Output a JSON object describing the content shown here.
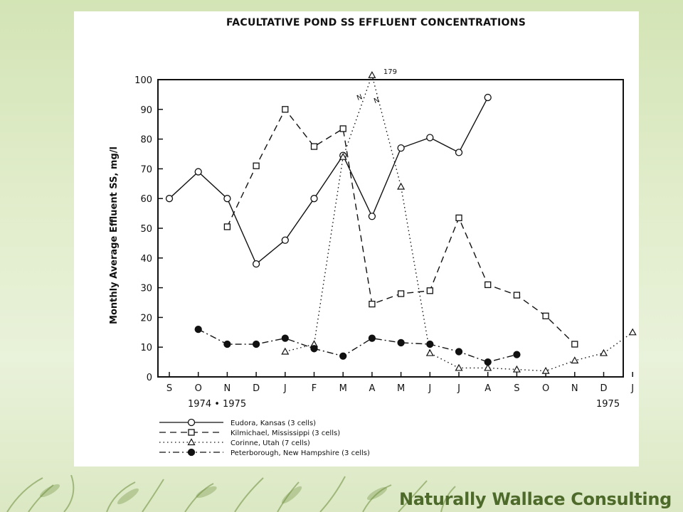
{
  "brand": {
    "name": "Naturally Wallace Consulting"
  },
  "colors": {
    "background": "#dbe8c3",
    "brand_text": "#4d6a2b",
    "leaf": "#6f8f3f",
    "ink": "#111111"
  },
  "chart_data": {
    "type": "line",
    "title": "FACULTATIVE POND SS EFFLUENT CONCENTRATIONS",
    "ylabel": "Monthly Average Effluent SS, mg/l",
    "xlabel": "",
    "ylim": [
      0,
      100
    ],
    "yticks": [
      0,
      10,
      20,
      30,
      40,
      50,
      60,
      70,
      80,
      90,
      100
    ],
    "categories": [
      "S",
      "O",
      "N",
      "D",
      "J",
      "F",
      "M",
      "A",
      "M",
      "J",
      "J",
      "A",
      "S",
      "O",
      "N",
      "D",
      "J"
    ],
    "year_labels": [
      "1974 • 1975",
      "1975"
    ],
    "grid": false,
    "legend_position": "bottom-left",
    "series": [
      {
        "name": "Eudora, Kansas (3 cells)",
        "style": "solid",
        "marker": "open-circle",
        "values": [
          60,
          69,
          60,
          38,
          46,
          60,
          74.5,
          54,
          77,
          80.5,
          75.5,
          94,
          null,
          null,
          null,
          null,
          null
        ]
      },
      {
        "name": "Kilmichael, Mississippi (3 cells)",
        "style": "dashed",
        "marker": "open-square",
        "values": [
          null,
          null,
          50.5,
          71,
          90,
          77.5,
          83.5,
          24.5,
          28,
          29,
          53.5,
          31,
          27.5,
          20.5,
          11,
          null,
          null
        ]
      },
      {
        "name": "Corinne, Utah (7 cells)",
        "style": "dotted",
        "marker": "open-triangle",
        "values": [
          null,
          null,
          null,
          null,
          8.5,
          11,
          74,
          101.5,
          64,
          8,
          3,
          3,
          2.5,
          2,
          5.5,
          8,
          15
        ]
      },
      {
        "name": "Peterborough, New Hampshire (3 cells)",
        "style": "dash-dot",
        "marker": "filled-circle",
        "values": [
          null,
          16,
          11,
          11,
          13,
          9.5,
          7,
          13,
          11.5,
          11,
          8.5,
          5,
          7.5,
          null,
          null,
          null,
          null
        ]
      }
    ],
    "annotations": [
      {
        "text": "179"
      },
      {
        "text": "N"
      }
    ]
  }
}
